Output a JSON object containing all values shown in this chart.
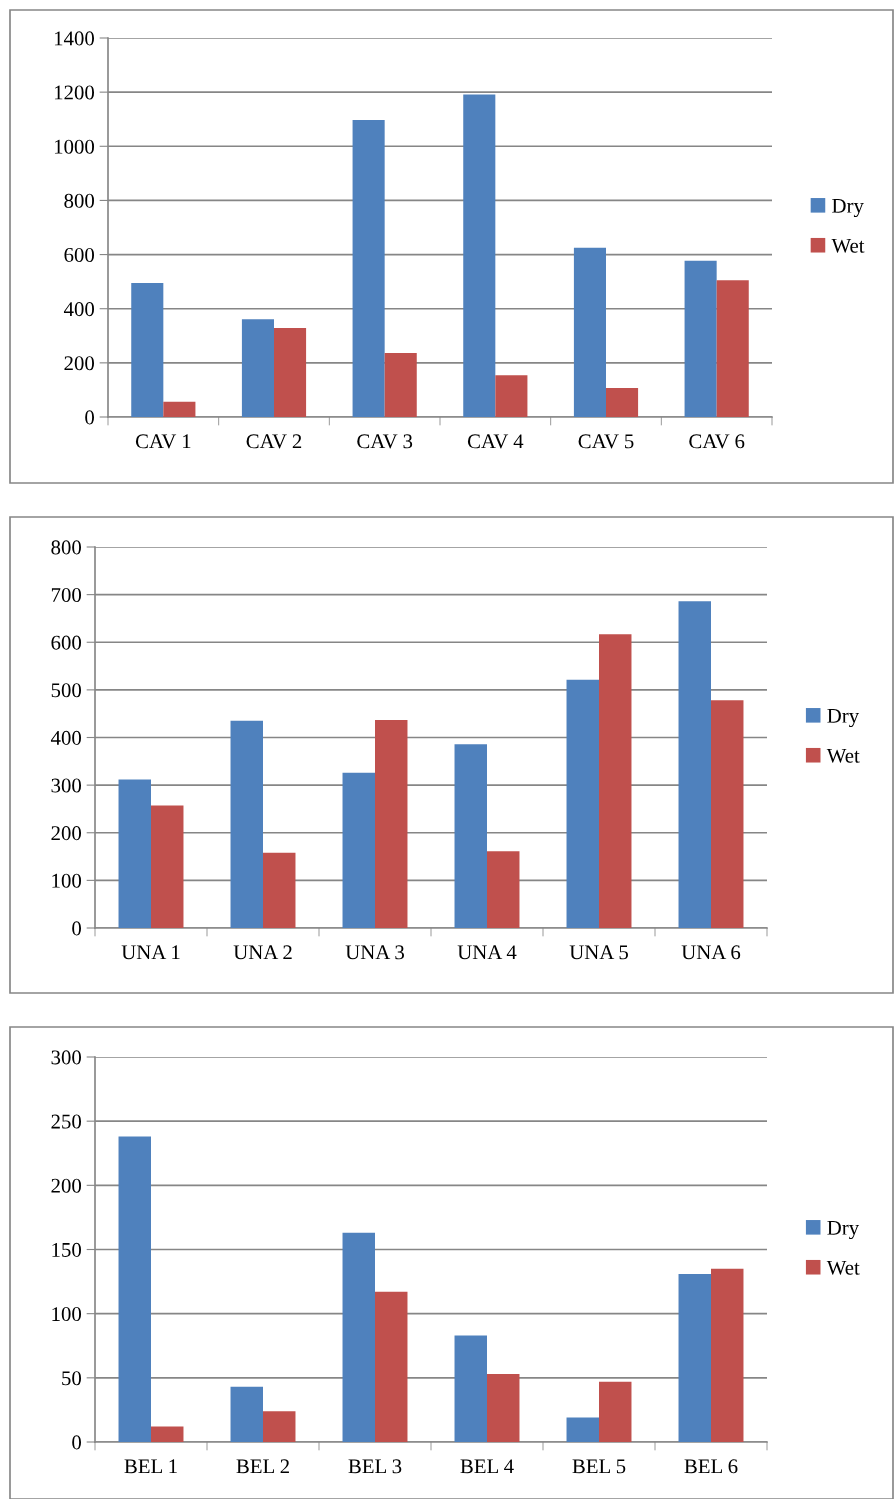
{
  "chart_data": [
    {
      "type": "bar",
      "categories": [
        "CAV 1",
        "CAV 2",
        "CAV 3",
        "CAV 4",
        "CAV 5",
        "CAV 6"
      ],
      "series": [
        {
          "name": "Dry",
          "color": "#4f81bd",
          "values": [
            495,
            361,
            1097,
            1191,
            625,
            577
          ]
        },
        {
          "name": "Wet",
          "color": "#c0504d",
          "values": [
            56,
            329,
            236,
            154,
            107,
            505
          ]
        }
      ],
      "ylim": [
        0,
        1400
      ],
      "yticks": [
        0,
        200,
        400,
        600,
        800,
        1000,
        1200,
        1400
      ],
      "grid": "y",
      "legend": "right"
    },
    {
      "type": "bar",
      "categories": [
        "UNA 1",
        "UNA 2",
        "UNA 3",
        "UNA 4",
        "UNA 5",
        "UNA 6"
      ],
      "series": [
        {
          "name": "Dry",
          "color": "#4f81bd",
          "values": [
            312,
            435,
            326,
            386,
            521,
            686
          ]
        },
        {
          "name": "Wet",
          "color": "#c0504d",
          "values": [
            257,
            158,
            437,
            161,
            617,
            478
          ]
        }
      ],
      "ylim": [
        0,
        800
      ],
      "yticks": [
        0,
        100,
        200,
        300,
        400,
        500,
        600,
        700,
        800
      ],
      "grid": "y",
      "legend": "right"
    },
    {
      "type": "bar",
      "categories": [
        "BEL 1",
        "BEL 2",
        "BEL 3",
        "BEL 4",
        "BEL 5",
        "BEL 6"
      ],
      "series": [
        {
          "name": "Dry",
          "color": "#4f81bd",
          "values": [
            238,
            43,
            163,
            83,
            19,
            131
          ]
        },
        {
          "name": "Wet",
          "color": "#c0504d",
          "values": [
            12,
            24,
            117,
            53,
            47,
            135
          ]
        }
      ],
      "ylim": [
        0,
        300
      ],
      "yticks": [
        0,
        50,
        100,
        150,
        200,
        250,
        300
      ],
      "grid": "y",
      "legend": "right"
    }
  ]
}
